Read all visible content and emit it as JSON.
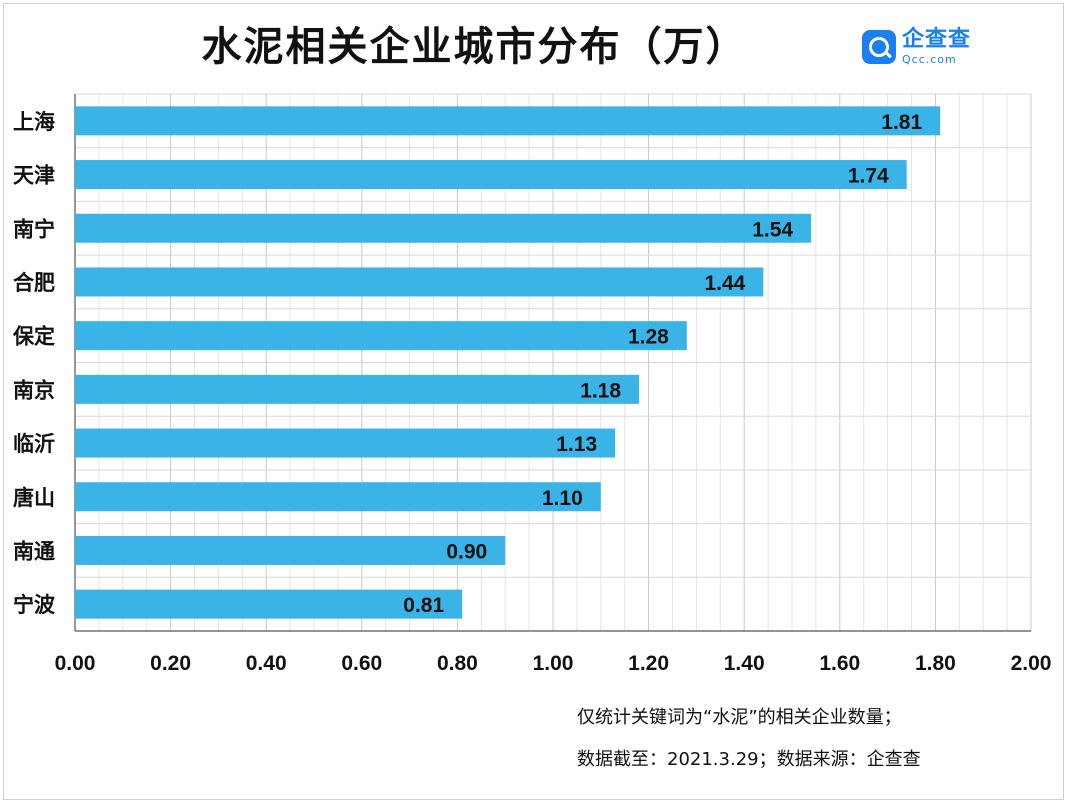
{
  "title": "水泥相关企业城市分布（万）",
  "logo": {
    "name": "企查查",
    "domain": "Qcc.com",
    "icon": "magnifier-logo-icon"
  },
  "notes": [
    "仅统计关键词为“水泥”的相关企业数量；",
    "数据截至：2021.3.29；数据来源：企查查"
  ],
  "colors": {
    "bar": "#3ab4e6",
    "grid": "#d9d9d9",
    "axis": "#555555"
  },
  "chart_data": {
    "type": "bar",
    "orientation": "horizontal",
    "categories": [
      "上海",
      "天津",
      "南宁",
      "合肥",
      "保定",
      "南京",
      "临沂",
      "唐山",
      "南通",
      "宁波"
    ],
    "values": [
      1.81,
      1.74,
      1.54,
      1.44,
      1.28,
      1.18,
      1.13,
      1.1,
      0.9,
      0.81
    ],
    "value_labels": [
      "1.81",
      "1.74",
      "1.54",
      "1.44",
      "1.28",
      "1.18",
      "1.13",
      "1.10",
      "0.90",
      "0.81"
    ],
    "xlim": [
      0,
      2.0
    ],
    "xticks": [
      "0.00",
      "0.20",
      "0.40",
      "0.60",
      "0.80",
      "1.00",
      "1.20",
      "1.40",
      "1.60",
      "1.80",
      "2.00"
    ],
    "grid": true
  }
}
